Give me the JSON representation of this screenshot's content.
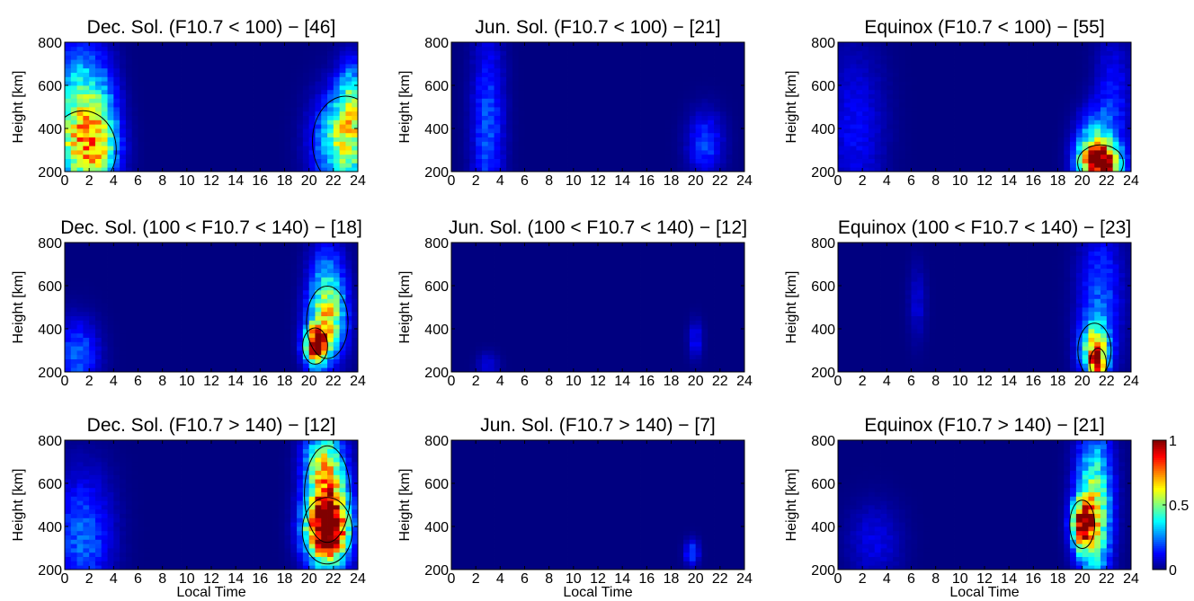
{
  "figure": {
    "panels": [
      {
        "title": "Dec. Sol. (F10.7 < 100) − [46]",
        "season": "dec",
        "activity": "low"
      },
      {
        "title": "Jun. Sol. (F10.7 < 100)  − [21]",
        "season": "jun",
        "activity": "low"
      },
      {
        "title": "Equinox (F10.7 < 100) − [55]",
        "season": "eqx",
        "activity": "low"
      },
      {
        "title": "Dec. Sol. (100 < F10.7 < 140) − [18]",
        "season": "dec",
        "activity": "mid"
      },
      {
        "title": "Jun. Sol. (100 < F10.7 < 140) − [12]",
        "season": "jun",
        "activity": "mid"
      },
      {
        "title": "Equinox (100 < F10.7 < 140) − [23]",
        "season": "eqx",
        "activity": "mid"
      },
      {
        "title": "Dec. Sol. (F10.7 > 140) − [12]",
        "season": "dec",
        "activity": "high"
      },
      {
        "title": "Jun. Sol. (F10.7 > 140) − [7]",
        "season": "jun",
        "activity": "high"
      },
      {
        "title": "Equinox (F10.7 > 140) − [21]",
        "season": "eqx",
        "activity": "high"
      }
    ],
    "ylabel": "Height [km]",
    "xlabel": "Local Time",
    "xticks": [
      "0",
      "2",
      "4",
      "6",
      "8",
      "10",
      "12",
      "14",
      "16",
      "18",
      "20",
      "22",
      "24"
    ],
    "yticks": [
      "200",
      "400",
      "600",
      "800"
    ],
    "colorbar": {
      "ticks": [
        "0",
        "0.5",
        "1"
      ],
      "colormap": "jet"
    }
  },
  "chart_data": {
    "type": "heatmap",
    "x_range": [
      0,
      24
    ],
    "y_range": [
      200,
      800
    ],
    "z_range": [
      0,
      1
    ],
    "x_unit": "local time hours",
    "y_unit": "km",
    "contour_level": 0.5,
    "panels": [
      {
        "blobs": [
          {
            "x": 1.5,
            "y": 300,
            "sx": 1.6,
            "sy": 130,
            "amp": 0.55
          },
          {
            "x": 1.0,
            "y": 560,
            "sx": 1.2,
            "sy": 160,
            "amp": 0.35
          },
          {
            "x": 3.0,
            "y": 420,
            "sx": 1.0,
            "sy": 200,
            "amp": 0.3
          },
          {
            "x": 23.0,
            "y": 340,
            "sx": 1.6,
            "sy": 150,
            "amp": 0.55
          },
          {
            "x": 23.5,
            "y": 550,
            "sx": 0.8,
            "sy": 120,
            "amp": 0.3
          }
        ]
      },
      {
        "blobs": [
          {
            "x": 3.0,
            "y": 400,
            "sx": 0.9,
            "sy": 300,
            "amp": 0.2
          },
          {
            "x": 20.8,
            "y": 330,
            "sx": 1.0,
            "sy": 100,
            "amp": 0.18
          }
        ]
      },
      {
        "blobs": [
          {
            "x": 21.5,
            "y": 240,
            "sx": 1.1,
            "sy": 60,
            "amp": 0.95
          },
          {
            "x": 21.0,
            "y": 330,
            "sx": 1.0,
            "sy": 100,
            "amp": 0.35
          },
          {
            "x": 1.5,
            "y": 400,
            "sx": 1.6,
            "sy": 250,
            "amp": 0.12
          },
          {
            "x": 22.5,
            "y": 520,
            "sx": 1.0,
            "sy": 200,
            "amp": 0.15
          }
        ]
      },
      {
        "blobs": [
          {
            "x": 20.5,
            "y": 320,
            "sx": 0.6,
            "sy": 60,
            "amp": 0.9
          },
          {
            "x": 21.5,
            "y": 430,
            "sx": 1.0,
            "sy": 120,
            "amp": 0.5
          },
          {
            "x": 21.5,
            "y": 600,
            "sx": 1.0,
            "sy": 150,
            "amp": 0.25
          },
          {
            "x": 1.0,
            "y": 280,
            "sx": 1.2,
            "sy": 110,
            "amp": 0.22
          }
        ]
      },
      {
        "blobs": [
          {
            "x": 20.0,
            "y": 350,
            "sx": 0.4,
            "sy": 60,
            "amp": 0.12
          },
          {
            "x": 3.0,
            "y": 230,
            "sx": 0.6,
            "sy": 40,
            "amp": 0.1
          }
        ]
      },
      {
        "blobs": [
          {
            "x": 21.0,
            "y": 300,
            "sx": 0.8,
            "sy": 90,
            "amp": 0.55
          },
          {
            "x": 21.3,
            "y": 240,
            "sx": 0.4,
            "sy": 50,
            "amp": 0.6
          },
          {
            "x": 21.5,
            "y": 550,
            "sx": 1.2,
            "sy": 220,
            "amp": 0.2
          },
          {
            "x": 6.5,
            "y": 520,
            "sx": 0.5,
            "sy": 120,
            "amp": 0.08
          }
        ]
      },
      {
        "blobs": [
          {
            "x": 21.5,
            "y": 380,
            "sx": 1.2,
            "sy": 110,
            "amp": 0.95
          },
          {
            "x": 21.5,
            "y": 550,
            "sx": 1.1,
            "sy": 160,
            "amp": 0.55
          },
          {
            "x": 21.0,
            "y": 720,
            "sx": 1.0,
            "sy": 90,
            "amp": 0.3
          },
          {
            "x": 1.5,
            "y": 350,
            "sx": 1.6,
            "sy": 200,
            "amp": 0.22
          }
        ]
      },
      {
        "blobs": [
          {
            "x": 19.7,
            "y": 280,
            "sx": 0.4,
            "sy": 40,
            "amp": 0.2
          }
        ]
      },
      {
        "blobs": [
          {
            "x": 20.0,
            "y": 410,
            "sx": 0.6,
            "sy": 80,
            "amp": 0.75
          },
          {
            "x": 21.0,
            "y": 380,
            "sx": 0.9,
            "sy": 180,
            "amp": 0.4
          },
          {
            "x": 21.0,
            "y": 620,
            "sx": 1.0,
            "sy": 200,
            "amp": 0.3
          },
          {
            "x": 3.0,
            "y": 330,
            "sx": 1.5,
            "sy": 120,
            "amp": 0.1
          }
        ]
      }
    ]
  }
}
